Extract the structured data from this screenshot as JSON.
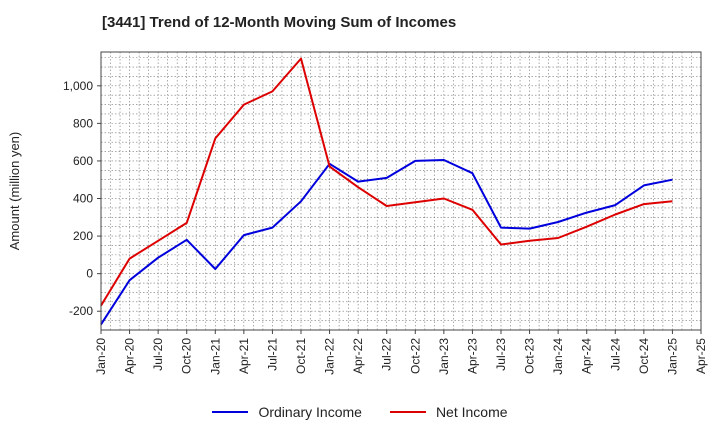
{
  "chart_data": {
    "type": "line",
    "title": "[3441]  Trend of 12-Month Moving Sum of Incomes",
    "ylabel": "Amount (million yen)",
    "xlabel": "",
    "ylim": [
      -300,
      1180
    ],
    "yticks": [
      -200,
      0,
      200,
      400,
      600,
      800,
      1000
    ],
    "ytick_labels": [
      "-200",
      "0",
      "200",
      "400",
      "600",
      "800",
      "1,000"
    ],
    "x": [
      "Jan-20",
      "Apr-20",
      "Jul-20",
      "Oct-20",
      "Jan-21",
      "Apr-21",
      "Jul-21",
      "Oct-21",
      "Jan-22",
      "Apr-22",
      "Jul-22",
      "Oct-22",
      "Jan-23",
      "Apr-23",
      "Jul-23",
      "Oct-23",
      "Jan-24",
      "Apr-24",
      "Jul-24",
      "Oct-24",
      "Jan-25",
      "Apr-25"
    ],
    "grid": true,
    "legend_position": "bottom-center",
    "series": [
      {
        "name": "Ordinary Income",
        "color": "#0000dd",
        "values": [
          -270,
          -35,
          85,
          180,
          25,
          205,
          245,
          385,
          585,
          490,
          510,
          600,
          605,
          535,
          245,
          240,
          275,
          325,
          365,
          470,
          500,
          null
        ]
      },
      {
        "name": "Net Income",
        "color": "#dd0000",
        "values": [
          -170,
          80,
          175,
          270,
          720,
          900,
          970,
          1145,
          570,
          460,
          360,
          380,
          400,
          340,
          155,
          175,
          190,
          250,
          315,
          370,
          385,
          null
        ]
      }
    ]
  }
}
